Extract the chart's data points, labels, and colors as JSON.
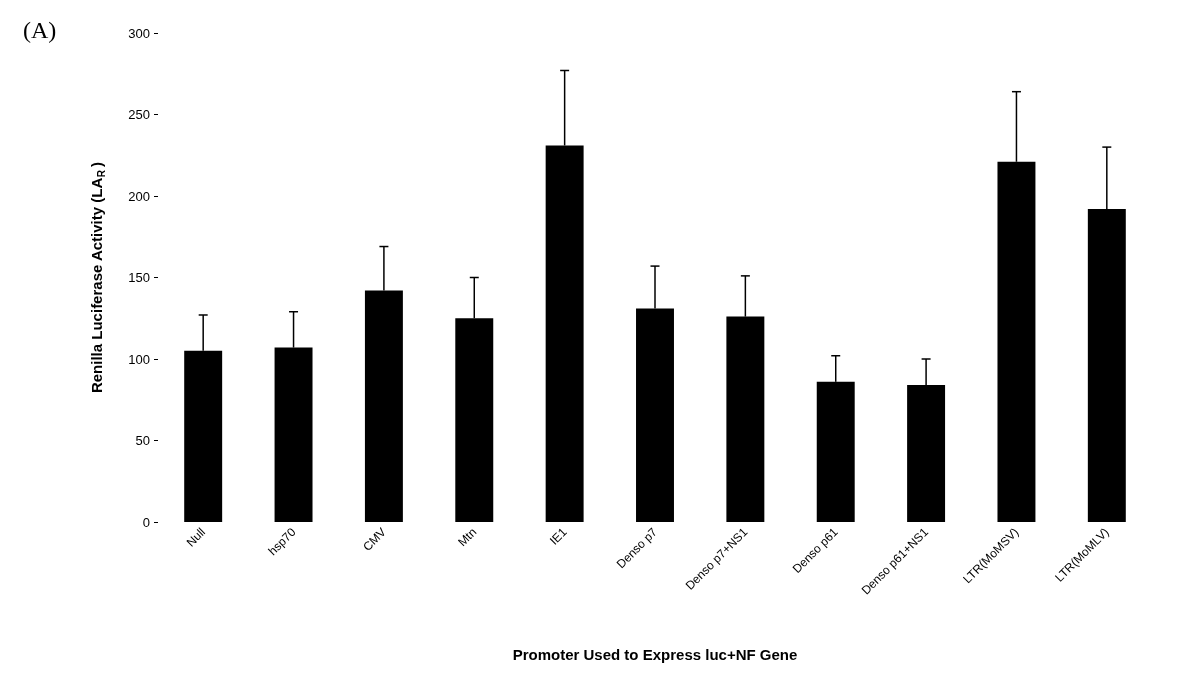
{
  "chart_data": {
    "type": "bar",
    "title": "(A)",
    "xlabel": "Promoter Used to Express luc+NF Gene",
    "ylabel": "Renilla Luciferase Activity (LA$_{R}$)",
    "categories": [
      "Null",
      "hsp70",
      "CMV",
      "Mtn",
      "IE1",
      "Denso p7",
      "Denso p7+NS1",
      "Denso p61",
      "Denso p61+NS1",
      "LTR(MoMSV)",
      "LTR(MoMLV)"
    ],
    "values": [
      105,
      107,
      142,
      125,
      231,
      131,
      126,
      86,
      84,
      221,
      192
    ],
    "errors": [
      [
        105,
        127
      ],
      [
        107,
        129
      ],
      [
        142,
        169
      ],
      [
        125,
        150
      ],
      [
        231,
        277
      ],
      [
        131,
        157
      ],
      [
        126,
        151
      ],
      [
        86,
        102
      ],
      [
        84,
        100
      ],
      [
        221,
        264
      ],
      [
        192,
        230
      ]
    ],
    "color": "#000000",
    "ylim": [
      0,
      300
    ],
    "yticks": [
      0,
      50,
      100,
      150,
      200,
      250,
      300
    ],
    "grid": false
  }
}
